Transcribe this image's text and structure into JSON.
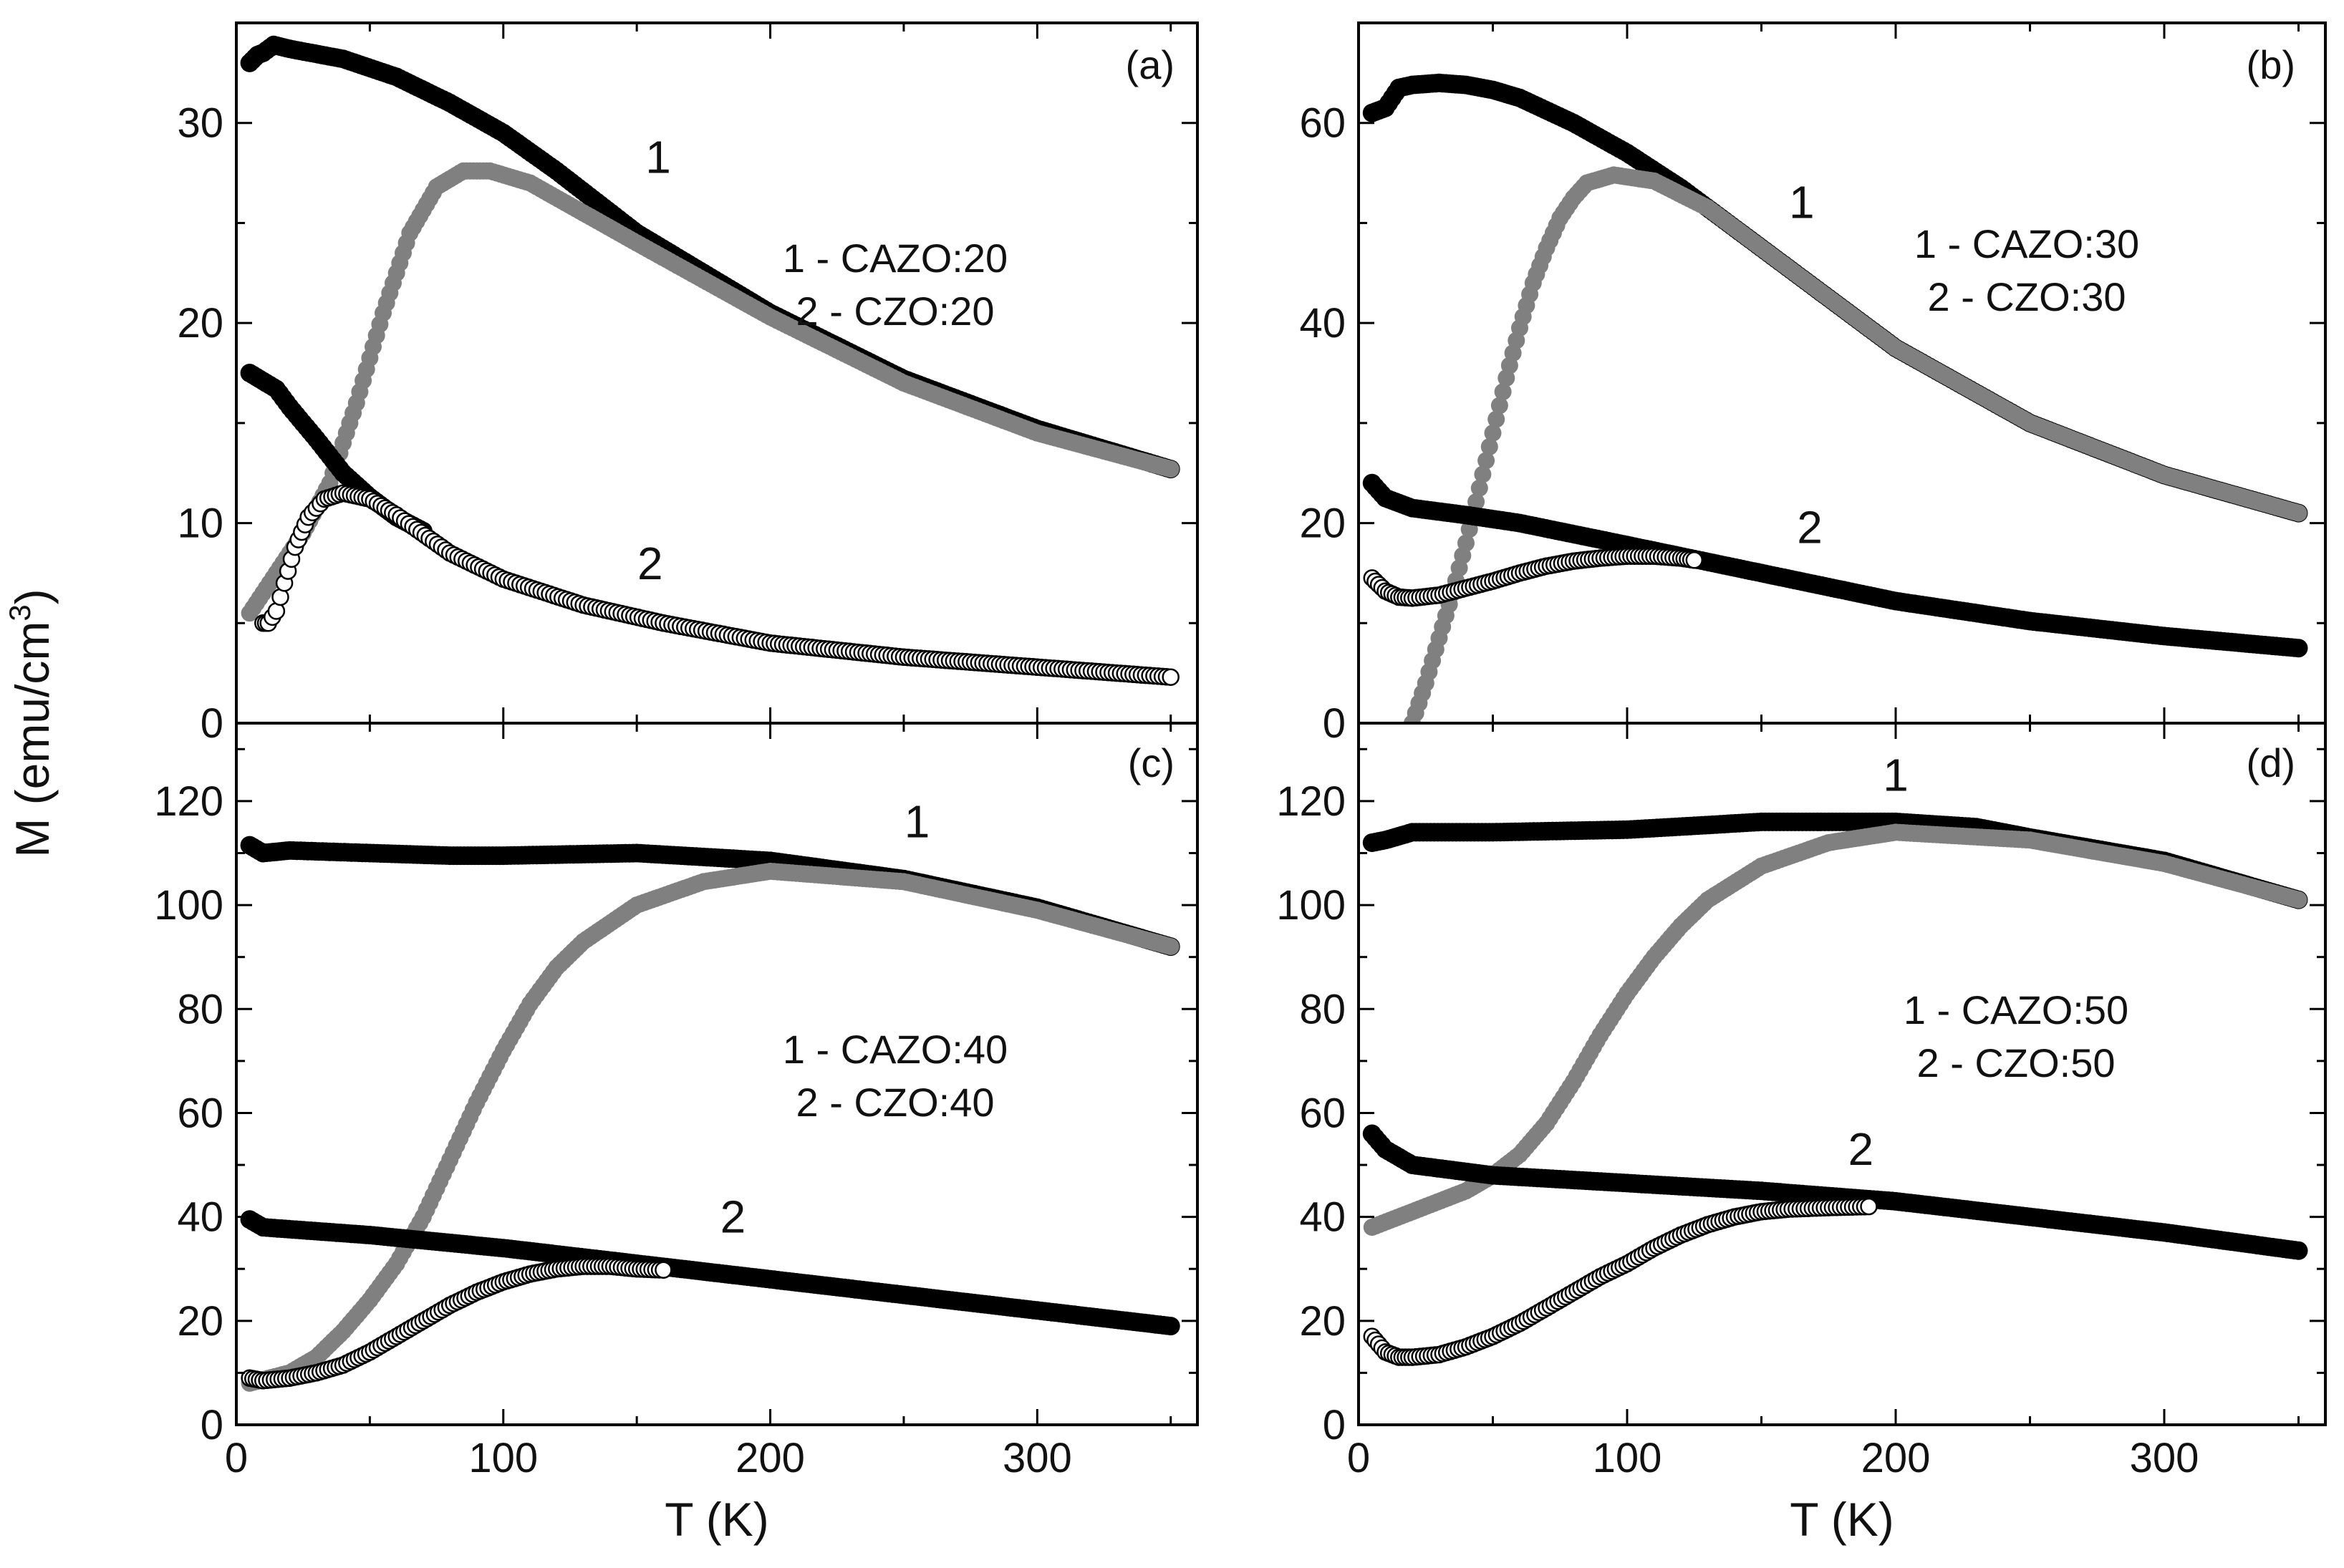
{
  "figure": {
    "ylabel": "M (emu/cm",
    "ylabel_superscript": "3",
    "ylabel_close": ")",
    "xlabel": "T (K)"
  },
  "colors": {
    "black_series": "#000000",
    "gray_series": "#808080",
    "open_series_fill": "#ffffff",
    "open_series_edge": "#000000"
  },
  "chart_data": [
    {
      "id": "a",
      "type": "scatter",
      "panel_label": "(a)",
      "legend": [
        "1 - CAZO:20",
        "2 - CZO:20"
      ],
      "curve_labels": [
        {
          "text": "1",
          "x": 158,
          "y": 27.5
        },
        {
          "text": "2",
          "x": 155,
          "y": 7.2
        }
      ],
      "xlim": [
        0,
        360
      ],
      "ylim": [
        0,
        35
      ],
      "xticks": [
        0,
        100,
        200,
        300
      ],
      "xtick_labels": [
        "0",
        "100",
        "200",
        "300"
      ],
      "yticks": [
        0,
        10,
        20,
        30
      ],
      "ytick_labels": [
        "0",
        "10",
        "20",
        "30"
      ],
      "series": [
        {
          "name": "1 - CAZO:20 (black)",
          "style": "black",
          "x": [
            5,
            8,
            10,
            14,
            20,
            40,
            60,
            80,
            100,
            120,
            150,
            200,
            250,
            300,
            350
          ],
          "y": [
            33.0,
            33.4,
            33.5,
            33.9,
            33.7,
            33.2,
            32.3,
            31.0,
            29.5,
            27.6,
            24.5,
            20.5,
            17.2,
            14.7,
            12.7
          ]
        },
        {
          "name": "1 - CAZO:20 (gray)",
          "style": "gray",
          "x": [
            5,
            15,
            25,
            35,
            45,
            55,
            65,
            75,
            85,
            95,
            110,
            130,
            150,
            200,
            250,
            300,
            350
          ],
          "y": [
            5.5,
            7.5,
            9.5,
            12.0,
            16.0,
            20.5,
            24.5,
            26.8,
            27.6,
            27.6,
            27.0,
            25.5,
            24.0,
            20.3,
            17.0,
            14.5,
            12.7
          ]
        },
        {
          "name": "2 - CZO:20 (black)",
          "style": "black",
          "x": [
            5,
            10,
            15,
            20,
            30,
            40,
            50,
            60,
            70
          ],
          "y": [
            17.5,
            17.1,
            16.7,
            15.8,
            14.2,
            12.5,
            11.3,
            10.3,
            9.6
          ]
        },
        {
          "name": "2 - CZO:20 (open)",
          "style": "open",
          "x": [
            10,
            12,
            15,
            18,
            22,
            27,
            33,
            40,
            50,
            60,
            80,
            100,
            130,
            160,
            200,
            250,
            300,
            350
          ],
          "y": [
            5.0,
            5.0,
            5.6,
            7.0,
            8.8,
            10.3,
            11.2,
            11.5,
            11.2,
            10.4,
            8.5,
            7.2,
            5.9,
            5.0,
            4.0,
            3.3,
            2.8,
            2.3
          ]
        }
      ]
    },
    {
      "id": "b",
      "type": "scatter",
      "panel_label": "(b)",
      "legend": [
        "1 - CAZO:30",
        "2 - CZO:30"
      ],
      "curve_labels": [
        {
          "text": "1",
          "x": 165,
          "y": 50.5
        },
        {
          "text": "2",
          "x": 168,
          "y": 18.0
        }
      ],
      "xlim": [
        0,
        360
      ],
      "ylim": [
        0,
        70
      ],
      "xticks": [
        0,
        100,
        200,
        300
      ],
      "xtick_labels": [
        "0",
        "100",
        "200",
        "300"
      ],
      "yticks": [
        0,
        20,
        40,
        60
      ],
      "ytick_labels": [
        "0",
        "20",
        "40",
        "60"
      ],
      "series": [
        {
          "name": "1 - CAZO:30 (black)",
          "style": "black",
          "x": [
            5,
            10,
            15,
            20,
            30,
            40,
            50,
            60,
            80,
            100,
            120,
            150,
            200,
            250,
            300,
            350
          ],
          "y": [
            61.0,
            61.5,
            63.5,
            63.8,
            64.0,
            63.8,
            63.3,
            62.5,
            60.0,
            57.0,
            53.5,
            47.5,
            37.5,
            30.0,
            24.8,
            21.0
          ]
        },
        {
          "name": "1 - CAZO:30 (gray)",
          "style": "gray",
          "x": [
            20,
            25,
            30,
            35,
            40,
            45,
            50,
            55,
            60,
            65,
            70,
            75,
            80,
            85,
            95,
            110,
            130,
            150,
            200,
            250,
            300,
            350
          ],
          "y": [
            0.0,
            4.0,
            8.5,
            13.0,
            18.0,
            23.5,
            29.0,
            34.5,
            39.5,
            44.0,
            47.5,
            50.5,
            52.5,
            54.0,
            54.8,
            54.2,
            51.5,
            47.5,
            37.5,
            30.0,
            24.8,
            21.0
          ]
        },
        {
          "name": "2 - CZO:30 (black)",
          "style": "black",
          "x": [
            5,
            10,
            20,
            40,
            60,
            100,
            150,
            200,
            250,
            300,
            350
          ],
          "y": [
            24.0,
            22.5,
            21.5,
            20.8,
            20.0,
            17.8,
            15.0,
            12.2,
            10.2,
            8.7,
            7.5
          ]
        },
        {
          "name": "2 - CZO:30 (open)",
          "style": "open",
          "x": [
            5,
            10,
            15,
            20,
            30,
            40,
            50,
            60,
            70,
            80,
            90,
            100,
            110,
            120,
            125
          ],
          "y": [
            14.5,
            13.2,
            12.6,
            12.5,
            12.8,
            13.5,
            14.2,
            15.0,
            15.7,
            16.2,
            16.5,
            16.7,
            16.7,
            16.5,
            16.3
          ]
        }
      ]
    },
    {
      "id": "c",
      "type": "scatter",
      "panel_label": "(c)",
      "legend": [
        "1 - CAZO:40",
        "2 - CZO:40"
      ],
      "curve_labels": [
        {
          "text": "1",
          "x": 255,
          "y": 113.0
        },
        {
          "text": "2",
          "x": 186,
          "y": 37.0
        }
      ],
      "xlim": [
        0,
        360
      ],
      "ylim": [
        0,
        135
      ],
      "xticks": [
        0,
        100,
        200,
        300
      ],
      "xtick_labels": [
        "0",
        "100",
        "200",
        "300"
      ],
      "yticks": [
        0,
        20,
        40,
        60,
        80,
        100,
        120
      ],
      "ytick_labels": [
        "0",
        "20",
        "40",
        "60",
        "80",
        "100",
        "120"
      ],
      "series": [
        {
          "name": "1 - CAZO:40 (black)",
          "style": "black",
          "x": [
            5,
            10,
            20,
            50,
            80,
            100,
            150,
            200,
            250,
            300,
            350
          ],
          "y": [
            111.5,
            110.0,
            110.5,
            110.0,
            109.5,
            109.5,
            110.0,
            108.5,
            105.0,
            99.5,
            92.0
          ]
        },
        {
          "name": "1 - CAZO:40 (gray)",
          "style": "gray",
          "x": [
            5,
            20,
            30,
            40,
            50,
            60,
            70,
            80,
            90,
            100,
            110,
            120,
            130,
            150,
            175,
            200,
            250,
            300,
            350
          ],
          "y": [
            8.0,
            10.0,
            13.0,
            18.0,
            24.0,
            31.0,
            40.0,
            51.0,
            62.0,
            72.0,
            81.0,
            88.0,
            93.0,
            100.0,
            104.5,
            106.5,
            104.5,
            99.0,
            92.0
          ]
        },
        {
          "name": "2 - CZO:40 (black)",
          "style": "black",
          "x": [
            5,
            10,
            50,
            100,
            150,
            200,
            250,
            300,
            350
          ],
          "y": [
            39.5,
            38.0,
            36.5,
            34.0,
            31.0,
            28.0,
            25.0,
            22.0,
            19.0
          ]
        },
        {
          "name": "2 - CZO:40 (open)",
          "style": "open",
          "x": [
            5,
            10,
            20,
            30,
            40,
            50,
            60,
            70,
            80,
            90,
            100,
            110,
            120,
            130,
            140,
            150,
            160
          ],
          "y": [
            9.0,
            8.5,
            9.0,
            10.0,
            11.5,
            14.0,
            17.0,
            20.0,
            23.0,
            25.5,
            27.5,
            29.0,
            30.0,
            30.5,
            30.5,
            30.0,
            29.8
          ]
        }
      ]
    },
    {
      "id": "d",
      "type": "scatter",
      "panel_label": "(d)",
      "legend": [
        "1 - CAZO:50",
        "2 - CZO:50"
      ],
      "curve_labels": [
        {
          "text": "1",
          "x": 200,
          "y": 122.0
        },
        {
          "text": "2",
          "x": 187,
          "y": 50.0
        }
      ],
      "xlim": [
        0,
        360
      ],
      "ylim": [
        0,
        135
      ],
      "xticks": [
        0,
        100,
        200,
        300
      ],
      "xtick_labels": [
        "0",
        "100",
        "200",
        "300"
      ],
      "yticks": [
        0,
        20,
        40,
        60,
        80,
        100,
        120
      ],
      "ytick_labels": [
        "0",
        "20",
        "40",
        "60",
        "80",
        "100",
        "120"
      ],
      "series": [
        {
          "name": "1 - CAZO:50 (black)",
          "style": "black",
          "x": [
            5,
            10,
            20,
            50,
            100,
            150,
            200,
            230,
            250,
            300,
            350
          ],
          "y": [
            112.0,
            112.5,
            114.0,
            114.0,
            114.5,
            116.0,
            116.0,
            115.0,
            113.0,
            108.5,
            101.0
          ]
        },
        {
          "name": "1 - CAZO:50 (gray)",
          "style": "gray",
          "x": [
            5,
            20,
            40,
            50,
            60,
            70,
            80,
            90,
            100,
            110,
            120,
            130,
            150,
            175,
            200,
            250,
            300,
            350
          ],
          "y": [
            38.0,
            41.0,
            45.0,
            48.0,
            52.0,
            58.0,
            66.0,
            75.0,
            83.0,
            90.0,
            96.0,
            101.0,
            107.5,
            112.0,
            114.0,
            112.5,
            108.0,
            101.0
          ]
        },
        {
          "name": "2 - CZO:50 (black)",
          "style": "black",
          "x": [
            5,
            10,
            20,
            50,
            100,
            150,
            200,
            250,
            300,
            350
          ],
          "y": [
            56.0,
            53.0,
            50.0,
            48.0,
            46.5,
            45.0,
            43.0,
            40.0,
            37.0,
            33.5
          ]
        },
        {
          "name": "2 - CZO:50 (open)",
          "style": "open",
          "x": [
            5,
            10,
            15,
            20,
            30,
            40,
            50,
            60,
            70,
            80,
            90,
            100,
            110,
            120,
            130,
            140,
            150,
            160,
            175,
            190
          ],
          "y": [
            17.0,
            14.0,
            13.0,
            13.0,
            13.5,
            15.0,
            17.0,
            19.5,
            22.5,
            25.5,
            28.5,
            31.0,
            34.0,
            36.5,
            38.5,
            40.0,
            41.0,
            41.5,
            41.8,
            42.0
          ]
        }
      ]
    }
  ]
}
